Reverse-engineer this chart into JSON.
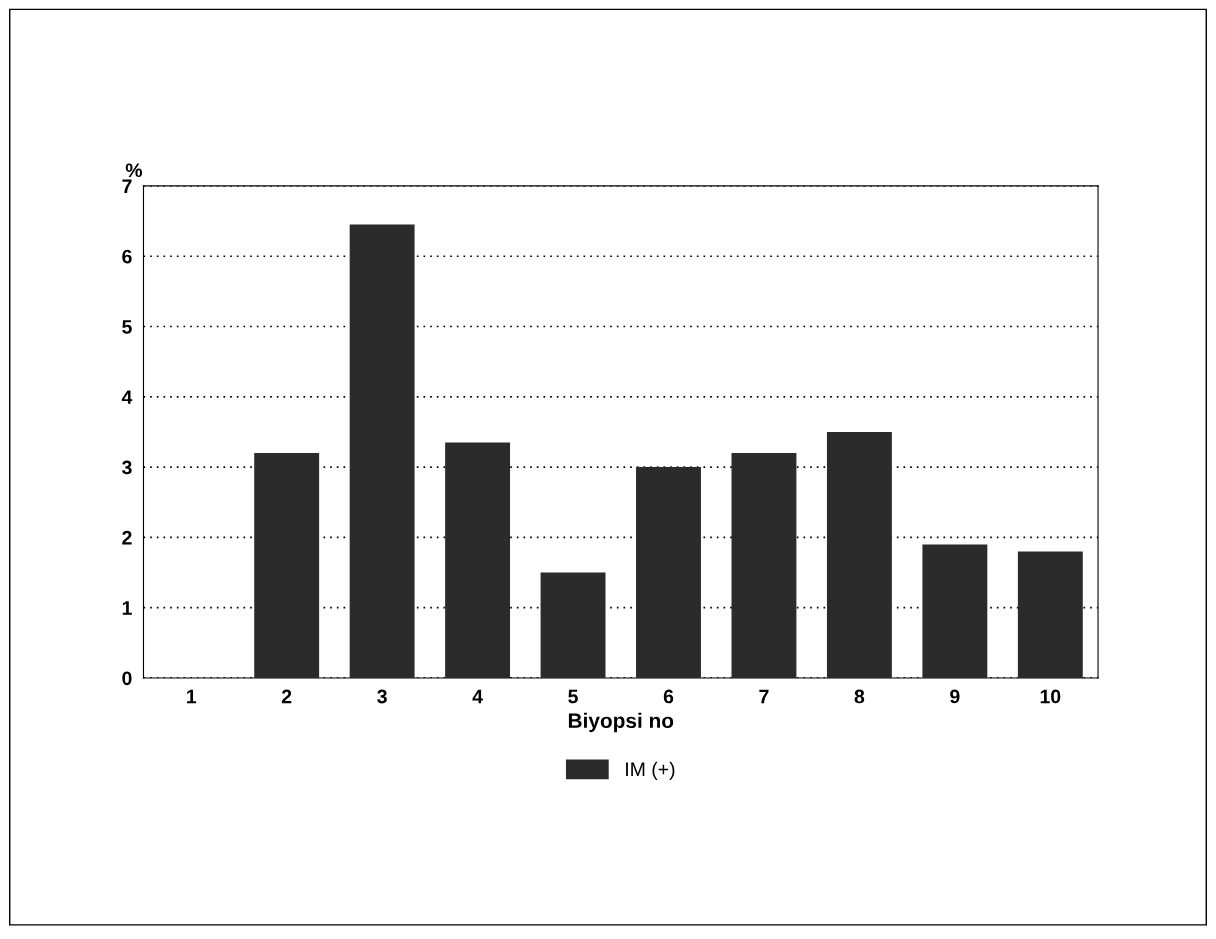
{
  "chart_data": {
    "type": "bar",
    "xlabel": "Biyopsi no",
    "ylabel": "%",
    "categories": [
      "1",
      "2",
      "3",
      "4",
      "5",
      "6",
      "7",
      "8",
      "9",
      "10"
    ],
    "series": [
      {
        "name": "IM (+)",
        "color": "#2b2b2b",
        "values": [
          0,
          3.2,
          6.45,
          3.35,
          1.5,
          3.0,
          3.2,
          3.5,
          1.9,
          1.8
        ]
      }
    ],
    "ylim": [
      0,
      7
    ],
    "yticks": [
      0,
      1,
      2,
      3,
      4,
      5,
      6,
      7
    ],
    "grid": "y",
    "legend": "bottom"
  }
}
